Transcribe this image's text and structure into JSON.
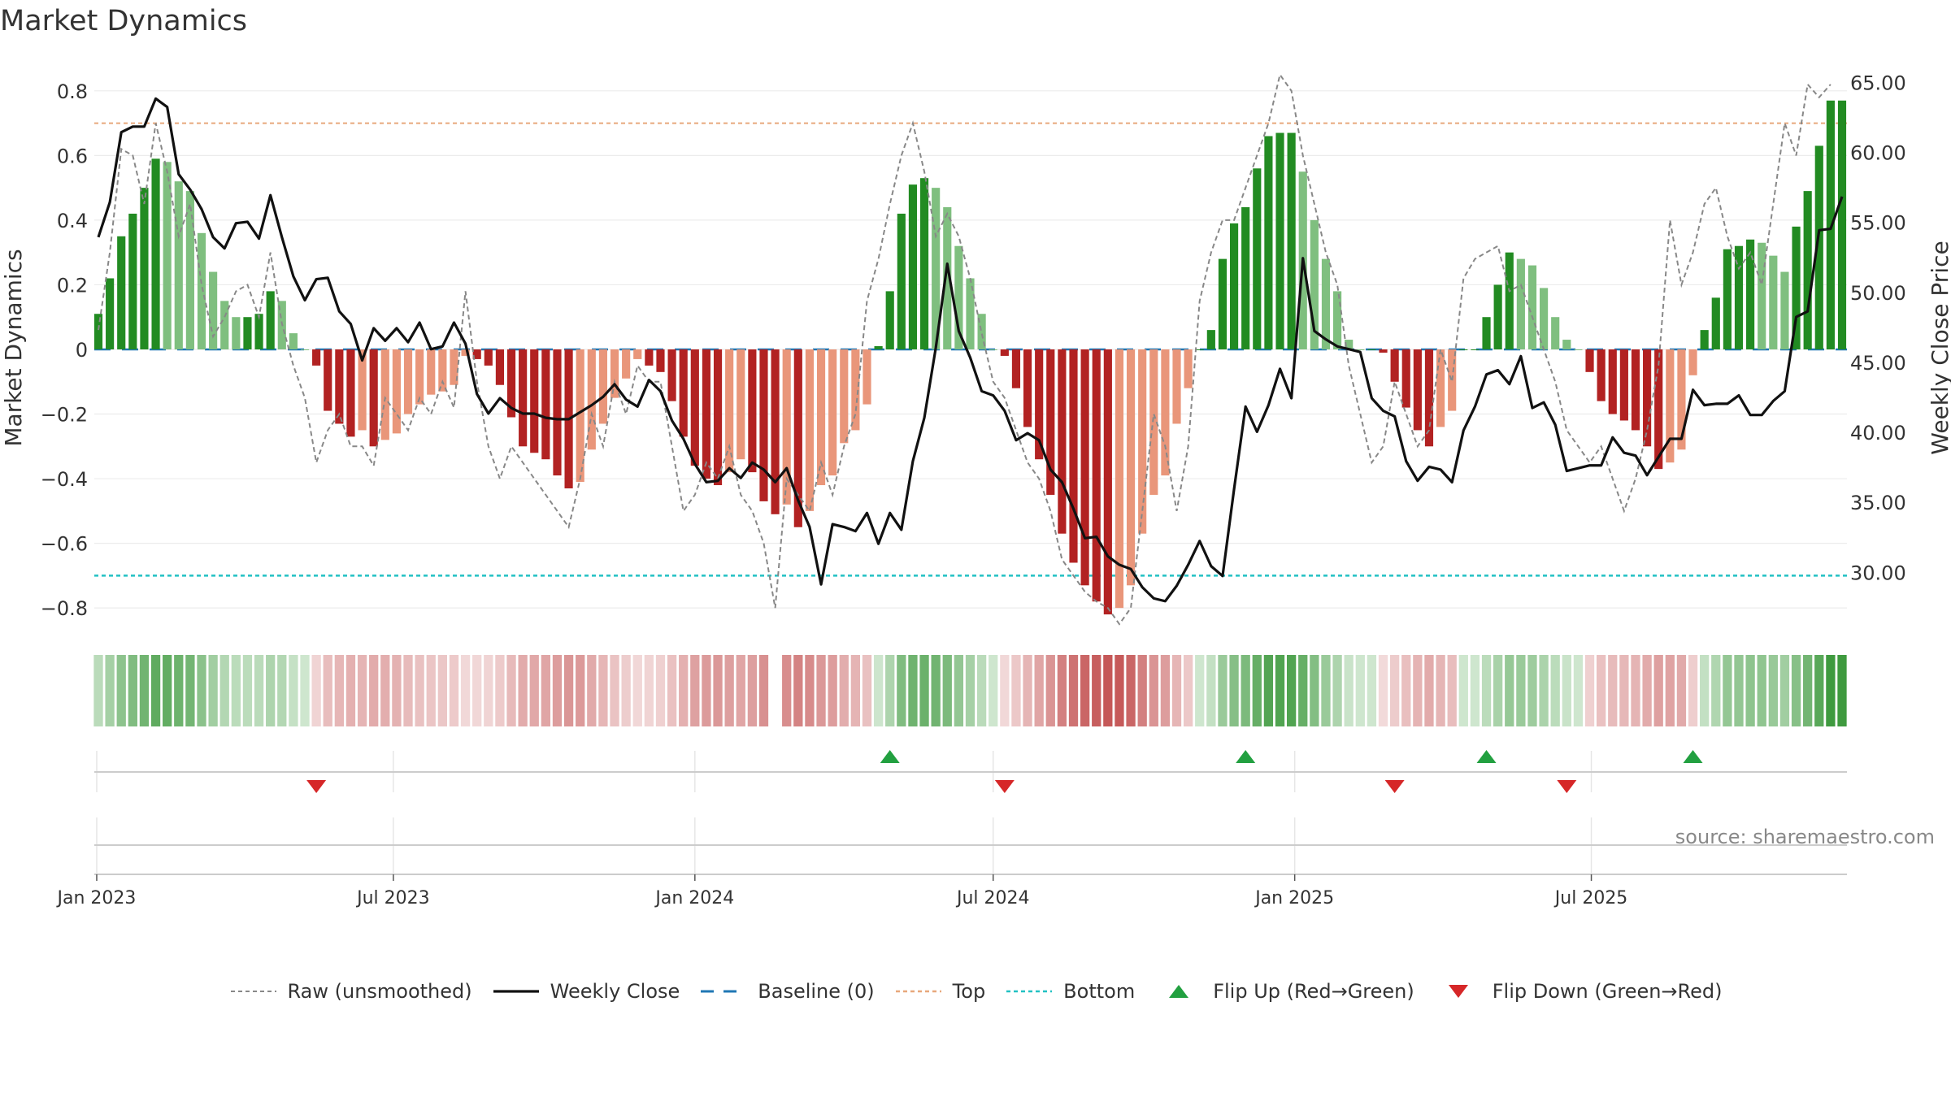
{
  "title": "Market Dynamics",
  "source_text": "source: sharemaestro.com",
  "colors": {
    "green_strong": "#228B22",
    "green_light": "#7FBF7F",
    "red_strong": "#B22222",
    "red_light": "#E9967A",
    "top_line": "#E8A87C",
    "bottom_line": "#22C1C3",
    "baseline": "#1F77B4",
    "raw_line": "#888888",
    "close_line": "#111111",
    "flip_up": "#22A040",
    "flip_down": "#D62728"
  },
  "legend": [
    {
      "key": "raw",
      "label": "Raw (unsmoothed)"
    },
    {
      "key": "close",
      "label": "Weekly Close"
    },
    {
      "key": "baseline",
      "label": "Baseline (0)"
    },
    {
      "key": "top",
      "label": "Top"
    },
    {
      "key": "bottom",
      "label": "Bottom"
    },
    {
      "key": "flip_up",
      "label": "Flip Up (Red→Green)"
    },
    {
      "key": "flip_down",
      "label": "Flip Down (Green→Red)"
    }
  ],
  "chart_data": {
    "type": "bar",
    "title": "Market Dynamics",
    "xlabel": "",
    "ylabel": "Market Dynamics",
    "y2label": "Weekly Close Price",
    "start_date": "2023-01-02",
    "interval": "weekly",
    "x_ticks": [
      "Jan 2023",
      "Jul 2023",
      "Jan 2024",
      "Jul 2024",
      "Jan 2025",
      "Jul 2025"
    ],
    "x_tick_dates": [
      "2023-01-01",
      "2023-07-01",
      "2024-01-01",
      "2024-07-01",
      "2025-01-01",
      "2025-07-01"
    ],
    "y_ticks": [
      -0.8,
      -0.6,
      -0.4,
      -0.2,
      0,
      0.2,
      0.4,
      0.6,
      0.8
    ],
    "y_tick_labels": [
      "−0.8",
      "−0.6",
      "−0.4",
      "−0.2",
      "0",
      "0.2",
      "0.4",
      "0.6",
      "0.8"
    ],
    "y2_ticks": [
      30,
      35,
      40,
      45,
      50,
      55,
      60,
      65
    ],
    "y2_tick_labels": [
      "30.00",
      "35.00",
      "40.00",
      "45.00",
      "50.00",
      "55.00",
      "60.00",
      "65.00"
    ],
    "ylim": [
      -0.87,
      0.88
    ],
    "y2lim": [
      25.9,
      66.3
    ],
    "top_threshold": 0.7,
    "bottom_threshold": -0.7,
    "baseline": 0,
    "grid": true,
    "legend_position": "bottom",
    "series": [
      {
        "name": "Market Dynamics",
        "values": [
          0.11,
          0.22,
          0.35,
          0.42,
          0.5,
          0.59,
          0.58,
          0.52,
          0.49,
          0.36,
          0.24,
          0.15,
          0.1,
          0.1,
          0.11,
          0.18,
          0.15,
          0.05,
          0.0,
          -0.05,
          -0.19,
          -0.23,
          -0.27,
          -0.25,
          -0.3,
          -0.28,
          -0.26,
          -0.2,
          -0.17,
          -0.14,
          -0.13,
          -0.11,
          -0.02,
          -0.03,
          -0.05,
          -0.11,
          -0.21,
          -0.3,
          -0.32,
          -0.34,
          -0.39,
          -0.43,
          -0.41,
          -0.31,
          -0.23,
          -0.15,
          -0.09,
          -0.03,
          -0.05,
          -0.07,
          -0.16,
          -0.27,
          -0.36,
          -0.4,
          -0.42,
          -0.38,
          -0.34,
          -0.38,
          -0.47,
          -0.51,
          -0.48,
          -0.55,
          -0.5,
          -0.42,
          -0.39,
          -0.29,
          -0.25,
          -0.17,
          0.01,
          0.18,
          0.42,
          0.51,
          0.53,
          0.5,
          0.44,
          0.32,
          0.22,
          0.11,
          0.0,
          -0.02,
          -0.12,
          -0.24,
          -0.34,
          -0.45,
          -0.57,
          -0.66,
          -0.73,
          -0.78,
          -0.82,
          -0.8,
          -0.73,
          -0.57,
          -0.45,
          -0.39,
          -0.23,
          -0.12,
          0.0,
          0.06,
          0.28,
          0.39,
          0.44,
          0.56,
          0.66,
          0.67,
          0.67,
          0.55,
          0.4,
          0.28,
          0.18,
          0.03,
          0.0,
          0.0,
          -0.01,
          -0.1,
          -0.18,
          -0.25,
          -0.3,
          -0.24,
          -0.19,
          0.0,
          0.0,
          0.1,
          0.2,
          0.3,
          0.28,
          0.26,
          0.19,
          0.1,
          0.03,
          0.0,
          -0.07,
          -0.16,
          -0.2,
          -0.22,
          -0.25,
          -0.3,
          -0.37,
          -0.35,
          -0.31,
          -0.08,
          0.06,
          0.16,
          0.31,
          0.32,
          0.34,
          0.33,
          0.29,
          0.24,
          0.38,
          0.49,
          0.63,
          0.77,
          0.77
        ]
      },
      {
        "name": "Raw (unsmoothed)",
        "values": [
          0.06,
          0.3,
          0.62,
          0.6,
          0.45,
          0.7,
          0.55,
          0.35,
          0.45,
          0.2,
          0.04,
          0.1,
          0.18,
          0.2,
          0.1,
          0.3,
          0.08,
          -0.05,
          -0.15,
          -0.35,
          -0.25,
          -0.2,
          -0.3,
          -0.3,
          -0.36,
          -0.15,
          -0.2,
          -0.25,
          -0.15,
          -0.2,
          -0.1,
          -0.18,
          0.18,
          -0.1,
          -0.3,
          -0.4,
          -0.3,
          -0.35,
          -0.4,
          -0.45,
          -0.5,
          -0.55,
          -0.4,
          -0.2,
          -0.3,
          -0.1,
          -0.2,
          -0.05,
          -0.1,
          -0.1,
          -0.3,
          -0.5,
          -0.45,
          -0.35,
          -0.4,
          -0.3,
          -0.45,
          -0.5,
          -0.6,
          -0.8,
          -0.4,
          -0.45,
          -0.5,
          -0.35,
          -0.45,
          -0.3,
          -0.2,
          0.15,
          0.28,
          0.45,
          0.6,
          0.7,
          0.55,
          0.35,
          0.42,
          0.35,
          0.22,
          0.05,
          -0.1,
          -0.15,
          -0.25,
          -0.35,
          -0.4,
          -0.5,
          -0.65,
          -0.7,
          -0.75,
          -0.78,
          -0.8,
          -0.85,
          -0.8,
          -0.5,
          -0.2,
          -0.3,
          -0.5,
          -0.3,
          0.15,
          0.3,
          0.4,
          0.4,
          0.5,
          0.6,
          0.7,
          0.85,
          0.8,
          0.6,
          0.45,
          0.3,
          0.2,
          -0.05,
          -0.2,
          -0.35,
          -0.3,
          -0.1,
          -0.2,
          -0.3,
          -0.25,
          0.0,
          -0.1,
          0.22,
          0.28,
          0.3,
          0.32,
          0.18,
          0.2,
          0.1,
          0.0,
          -0.1,
          -0.25,
          -0.3,
          -0.35,
          -0.3,
          -0.4,
          -0.5,
          -0.4,
          -0.25,
          -0.05,
          0.4,
          0.2,
          0.3,
          0.45,
          0.5,
          0.35,
          0.25,
          0.3,
          0.2,
          0.45,
          0.7,
          0.6,
          0.82,
          0.78,
          0.82
        ]
      },
      {
        "name": "Weekly Close",
        "values": [
          54.0,
          56.5,
          61.5,
          61.9,
          61.9,
          63.9,
          63.3,
          58.5,
          57.4,
          56.0,
          54.0,
          53.2,
          55.0,
          55.1,
          53.9,
          57.0,
          54.0,
          51.2,
          49.5,
          51.0,
          51.1,
          48.7,
          47.8,
          45.2,
          47.5,
          46.6,
          47.5,
          46.5,
          47.9,
          46.0,
          46.2,
          47.9,
          46.4,
          42.8,
          41.4,
          42.5,
          41.8,
          41.4,
          41.4,
          41.1,
          41.0,
          41.0,
          41.5,
          42.0,
          42.6,
          43.5,
          42.4,
          41.9,
          43.8,
          43.0,
          40.9,
          39.6,
          37.8,
          36.5,
          36.6,
          37.5,
          36.8,
          37.9,
          37.4,
          36.5,
          37.5,
          35.2,
          33.3,
          29.2,
          33.5,
          33.3,
          33.0,
          34.3,
          32.1,
          34.3,
          33.1,
          38.0,
          41.1,
          46.1,
          52.1,
          47.3,
          45.4,
          43.0,
          42.7,
          41.6,
          39.5,
          40.0,
          39.5,
          37.4,
          36.5,
          34.6,
          32.5,
          32.6,
          31.2,
          30.6,
          30.3,
          29.0,
          28.2,
          28.0,
          29.1,
          30.6,
          32.3,
          30.5,
          29.8,
          36.0,
          41.9,
          40.1,
          42.0,
          44.6,
          42.5,
          52.5,
          47.3,
          46.7,
          46.2,
          46.0,
          45.8,
          42.5,
          41.6,
          41.2,
          38.0,
          36.6,
          37.6,
          37.4,
          36.5,
          40.2,
          41.9,
          44.2,
          44.5,
          43.5,
          45.5,
          41.8,
          42.2,
          40.6,
          37.3,
          37.5,
          37.7,
          37.7,
          39.7,
          38.6,
          38.4,
          37.0,
          38.3,
          39.6,
          39.6,
          43.1,
          42.0,
          42.1,
          42.1,
          42.7,
          41.3,
          41.3,
          42.3,
          43.0,
          48.3,
          48.7,
          54.5,
          54.6,
          56.9
        ]
      },
      {
        "name": "Baseline (0)",
        "values": [
          0
        ]
      },
      {
        "name": "Top",
        "values": [
          0.7
        ]
      },
      {
        "name": "Bottom",
        "values": [
          -0.7
        ]
      }
    ],
    "strip_gap_weeks": [
      59
    ],
    "flip_up_weeks": [
      69,
      100,
      121,
      139
    ],
    "flip_down_weeks": [
      19,
      79,
      113,
      128
    ]
  }
}
